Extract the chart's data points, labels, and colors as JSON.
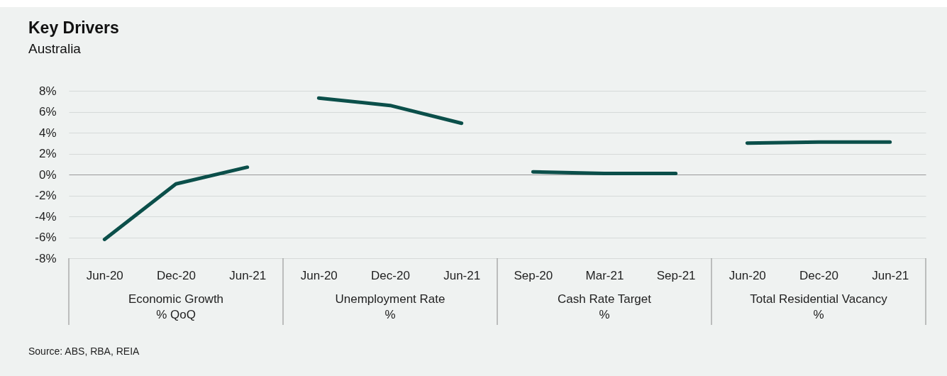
{
  "chart_data": {
    "type": "line",
    "title": "Key Drivers",
    "subtitle": "Australia",
    "categories": [
      "Jun-20",
      "Dec-20",
      "Jun-21",
      "Jun-20",
      "Dec-20",
      "Jun-21",
      "Sep-20",
      "Mar-21",
      "Sep-21",
      "Jun-20",
      "Dec-20",
      "Jun-21"
    ],
    "series": [
      {
        "color": "#0b4f4a",
        "values": [
          -6.2,
          -0.9,
          0.7,
          null,
          null,
          null,
          null,
          null,
          null,
          null,
          null,
          null
        ]
      },
      {
        "color": "#0b4f4a",
        "values": [
          null,
          null,
          null,
          7.3,
          6.6,
          4.9,
          null,
          null,
          null,
          null,
          null,
          null
        ]
      },
      {
        "color": "#0b4f4a",
        "values": [
          null,
          null,
          null,
          null,
          null,
          null,
          0.25,
          0.1,
          0.1,
          null,
          null,
          null
        ]
      },
      {
        "color": "#0b4f4a",
        "values": [
          null,
          null,
          null,
          null,
          null,
          null,
          null,
          null,
          null,
          3.0,
          3.1,
          3.1
        ]
      }
    ],
    "ylim": [
      -8,
      8
    ],
    "yticks": [
      {
        "value": -8,
        "label": "-8%"
      },
      {
        "value": -6,
        "label": "-6%"
      },
      {
        "value": -4,
        "label": "-4%"
      },
      {
        "value": -2,
        "label": "-2%"
      },
      {
        "value": 0,
        "label": "0%"
      },
      {
        "value": 2,
        "label": "2%"
      },
      {
        "value": 4,
        "label": "4%"
      },
      {
        "value": 6,
        "label": "6%"
      },
      {
        "value": 8,
        "label": "8%"
      }
    ],
    "grid": "y",
    "marker": "none",
    "line_style": "solid",
    "annotations": [
      "Economic Growth\n% QoQ",
      "Unemployment Rate\n%",
      "Cash Rate Target\n%",
      "Total Residential Vacancy\n%",
      "Source: ABS, RBA, REIA"
    ]
  }
}
